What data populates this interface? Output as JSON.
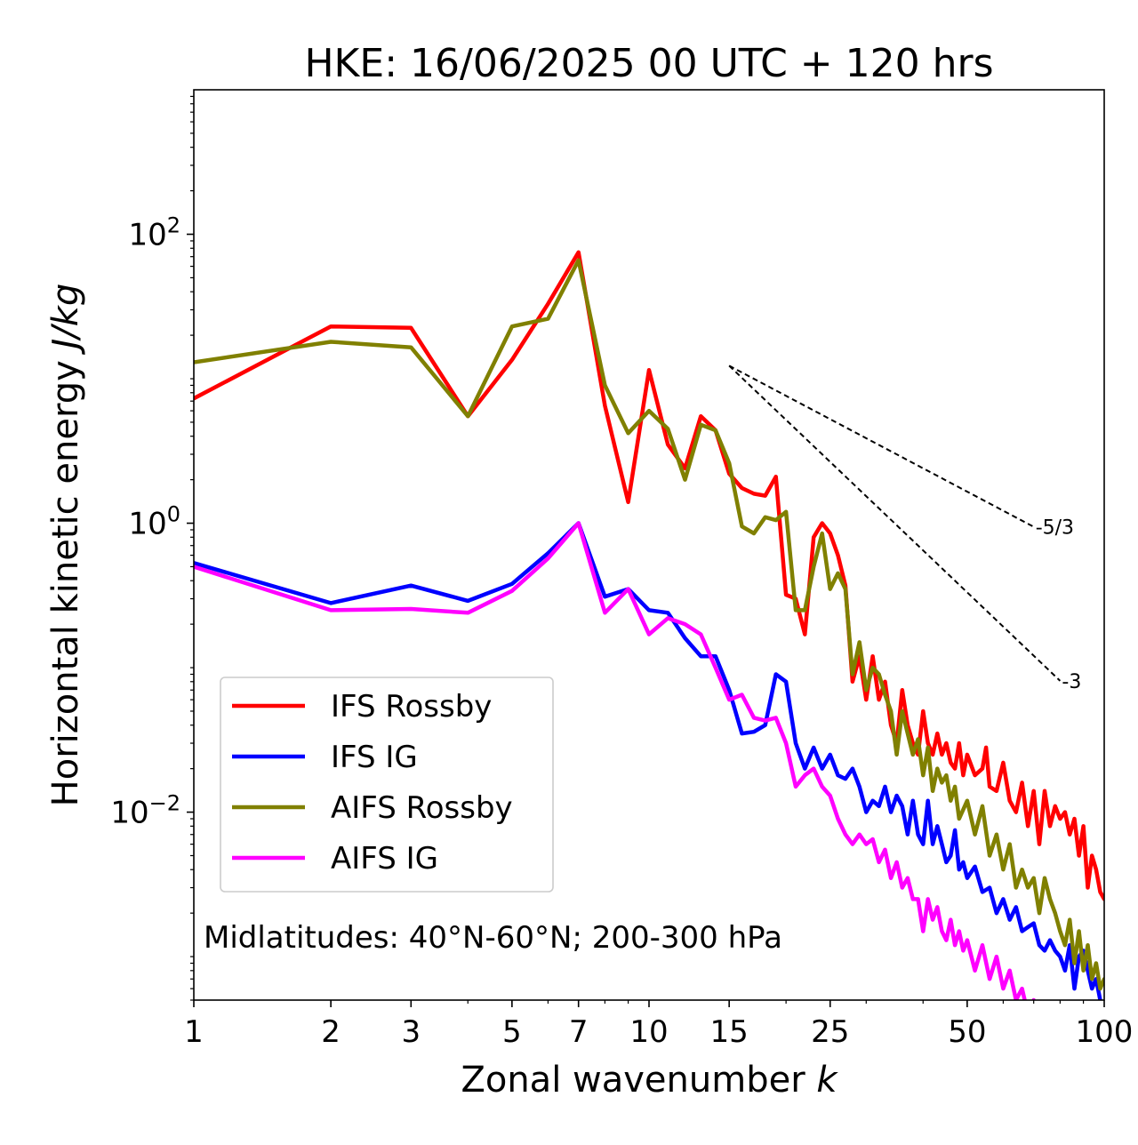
{
  "chart_data": {
    "type": "line",
    "title": "HKE: 16/06/2025 00 UTC + 120 hrs",
    "xlabel": "Zonal wavenumber",
    "xlabel_var": "k",
    "ylabel": "Horizontal kinetic energy",
    "ylabel_unit": "J/kg",
    "xscale": "log",
    "yscale": "log",
    "xlim": [
      1,
      100
    ],
    "ylim": [
      0.0005,
      1000
    ],
    "x_ticks": [
      {
        "value": 1,
        "label": "1"
      },
      {
        "value": 2,
        "label": "2"
      },
      {
        "value": 3,
        "label": "3"
      },
      {
        "value": 5,
        "label": "5"
      },
      {
        "value": 7,
        "label": "7"
      },
      {
        "value": 10,
        "label": "10"
      },
      {
        "value": 15,
        "label": "15"
      },
      {
        "value": 25,
        "label": "25"
      },
      {
        "value": 50,
        "label": "50"
      },
      {
        "value": 100,
        "label": "100"
      }
    ],
    "y_ticks": [
      {
        "value": 100,
        "base": "10",
        "exp": "2"
      },
      {
        "value": 1,
        "base": "10",
        "exp": "0"
      },
      {
        "value": 0.01,
        "base": "10",
        "exp": "−2"
      }
    ],
    "legend_position": "lower-left",
    "annotation": "Midlatitudes: 40°N-60°N; 200-300 hPa",
    "reference_lines": [
      {
        "label": "-5/3",
        "slope": -1.6667,
        "x": [
          15,
          70
        ],
        "y0": 12.3
      },
      {
        "label": "-3",
        "slope": -3,
        "x": [
          15,
          80
        ],
        "y0": 12.3
      }
    ],
    "series": [
      {
        "name": "IFS Rossby",
        "color": "#ff0000",
        "points": [
          [
            1,
            7.3
          ],
          [
            2,
            23
          ],
          [
            3,
            22.5
          ],
          [
            4,
            5.5
          ],
          [
            5,
            13.5
          ],
          [
            6,
            33
          ],
          [
            7,
            75
          ],
          [
            8,
            6.5
          ],
          [
            9,
            1.4
          ],
          [
            10,
            11.5
          ],
          [
            11,
            3.5
          ],
          [
            12,
            2.4
          ],
          [
            13,
            5.5
          ],
          [
            14,
            4.4
          ],
          [
            15,
            2.2
          ],
          [
            16,
            1.75
          ],
          [
            17,
            1.6
          ],
          [
            18,
            1.55
          ],
          [
            19,
            2.1
          ],
          [
            20,
            0.32
          ],
          [
            21,
            0.3
          ],
          [
            22,
            0.17
          ],
          [
            23,
            0.8
          ],
          [
            24,
            1.0
          ],
          [
            25,
            0.85
          ],
          [
            26,
            0.6
          ],
          [
            27,
            0.37
          ],
          [
            28,
            0.08
          ],
          [
            29,
            0.12
          ],
          [
            30,
            0.06
          ],
          [
            31,
            0.12
          ],
          [
            32,
            0.06
          ],
          [
            33,
            0.08
          ],
          [
            34,
            0.04
          ],
          [
            35,
            0.03
          ],
          [
            36,
            0.07
          ],
          [
            37,
            0.04
          ],
          [
            38,
            0.03
          ],
          [
            39,
            0.025
          ],
          [
            40,
            0.05
          ],
          [
            41,
            0.03
          ],
          [
            42,
            0.025
          ],
          [
            43,
            0.035
          ],
          [
            44,
            0.025
          ],
          [
            45,
            0.03
          ],
          [
            46,
            0.022
          ],
          [
            47,
            0.02
          ],
          [
            48,
            0.03
          ],
          [
            49,
            0.018
          ],
          [
            50,
            0.025
          ],
          [
            52,
            0.018
          ],
          [
            54,
            0.02
          ],
          [
            55,
            0.028
          ],
          [
            56,
            0.015
          ],
          [
            58,
            0.014
          ],
          [
            60,
            0.022
          ],
          [
            62,
            0.012
          ],
          [
            64,
            0.01
          ],
          [
            66,
            0.016
          ],
          [
            68,
            0.008
          ],
          [
            70,
            0.014
          ],
          [
            72,
            0.006
          ],
          [
            74,
            0.014
          ],
          [
            76,
            0.008
          ],
          [
            78,
            0.011
          ],
          [
            80,
            0.009
          ],
          [
            82,
            0.01
          ],
          [
            84,
            0.007
          ],
          [
            86,
            0.009
          ],
          [
            88,
            0.005
          ],
          [
            90,
            0.008
          ],
          [
            92,
            0.003
          ],
          [
            94,
            0.005
          ],
          [
            96,
            0.004
          ],
          [
            98,
            0.0028
          ],
          [
            100,
            0.0025
          ]
        ]
      },
      {
        "name": "IFS IG",
        "color": "#0000ff",
        "points": [
          [
            1,
            0.53
          ],
          [
            2,
            0.28
          ],
          [
            3,
            0.37
          ],
          [
            4,
            0.29
          ],
          [
            5,
            0.38
          ],
          [
            6,
            0.62
          ],
          [
            7,
            1.0
          ],
          [
            8,
            0.31
          ],
          [
            9,
            0.35
          ],
          [
            10,
            0.25
          ],
          [
            11,
            0.24
          ],
          [
            12,
            0.16
          ],
          [
            13,
            0.12
          ],
          [
            14,
            0.12
          ],
          [
            15,
            0.07
          ],
          [
            16,
            0.035
          ],
          [
            17,
            0.036
          ],
          [
            18,
            0.04
          ],
          [
            19,
            0.09
          ],
          [
            20,
            0.08
          ],
          [
            21,
            0.03
          ],
          [
            22,
            0.02
          ],
          [
            23,
            0.028
          ],
          [
            24,
            0.02
          ],
          [
            25,
            0.025
          ],
          [
            26,
            0.018
          ],
          [
            27,
            0.017
          ],
          [
            28,
            0.02
          ],
          [
            29,
            0.015
          ],
          [
            30,
            0.01
          ],
          [
            31,
            0.012
          ],
          [
            32,
            0.011
          ],
          [
            33,
            0.015
          ],
          [
            34,
            0.01
          ],
          [
            35,
            0.013
          ],
          [
            36,
            0.011
          ],
          [
            37,
            0.007
          ],
          [
            38,
            0.012
          ],
          [
            39,
            0.007
          ],
          [
            40,
            0.006
          ],
          [
            41,
            0.012
          ],
          [
            42,
            0.006
          ],
          [
            43,
            0.008
          ],
          [
            44,
            0.006
          ],
          [
            45,
            0.0045
          ],
          [
            46,
            0.005
          ],
          [
            47,
            0.0075
          ],
          [
            48,
            0.004
          ],
          [
            49,
            0.0045
          ],
          [
            50,
            0.0035
          ],
          [
            52,
            0.0042
          ],
          [
            54,
            0.0028
          ],
          [
            56,
            0.003
          ],
          [
            58,
            0.002
          ],
          [
            60,
            0.0025
          ],
          [
            62,
            0.0018
          ],
          [
            64,
            0.0022
          ],
          [
            66,
            0.0015
          ],
          [
            68,
            0.0016
          ],
          [
            70,
            0.0017
          ],
          [
            72,
            0.0012
          ],
          [
            74,
            0.0011
          ],
          [
            76,
            0.0013
          ],
          [
            78,
            0.0011
          ],
          [
            80,
            0.001
          ],
          [
            82,
            0.0008
          ],
          [
            84,
            0.0012
          ],
          [
            86,
            0.0006
          ],
          [
            88,
            0.001
          ],
          [
            90,
            0.0011
          ],
          [
            92,
            0.0008
          ],
          [
            94,
            0.0006
          ],
          [
            96,
            0.0007
          ],
          [
            98,
            0.0005
          ],
          [
            100,
            0.0004
          ]
        ]
      },
      {
        "name": "AIFS Rossby",
        "color": "#808000",
        "points": [
          [
            1,
            13
          ],
          [
            2,
            18
          ],
          [
            3,
            16.5
          ],
          [
            4,
            5.5
          ],
          [
            5,
            23
          ],
          [
            6,
            26
          ],
          [
            7,
            66
          ],
          [
            8,
            9
          ],
          [
            9,
            4.2
          ],
          [
            10,
            6
          ],
          [
            11,
            4.5
          ],
          [
            12,
            2.0
          ],
          [
            13,
            4.8
          ],
          [
            14,
            4.4
          ],
          [
            15,
            2.6
          ],
          [
            16,
            0.95
          ],
          [
            17,
            0.85
          ],
          [
            18,
            1.1
          ],
          [
            19,
            1.05
          ],
          [
            20,
            1.2
          ],
          [
            21,
            0.25
          ],
          [
            22,
            0.25
          ],
          [
            23,
            0.5
          ],
          [
            24,
            0.85
          ],
          [
            25,
            0.35
          ],
          [
            26,
            0.45
          ],
          [
            27,
            0.35
          ],
          [
            28,
            0.09
          ],
          [
            29,
            0.15
          ],
          [
            30,
            0.07
          ],
          [
            31,
            0.1
          ],
          [
            32,
            0.09
          ],
          [
            33,
            0.065
          ],
          [
            34,
            0.05
          ],
          [
            35,
            0.025
          ],
          [
            36,
            0.05
          ],
          [
            37,
            0.035
          ],
          [
            38,
            0.025
          ],
          [
            39,
            0.032
          ],
          [
            40,
            0.018
          ],
          [
            41,
            0.028
          ],
          [
            42,
            0.014
          ],
          [
            43,
            0.02
          ],
          [
            44,
            0.016
          ],
          [
            45,
            0.018
          ],
          [
            46,
            0.012
          ],
          [
            47,
            0.015
          ],
          [
            48,
            0.009
          ],
          [
            50,
            0.012
          ],
          [
            52,
            0.007
          ],
          [
            54,
            0.011
          ],
          [
            56,
            0.005
          ],
          [
            58,
            0.007
          ],
          [
            60,
            0.004
          ],
          [
            62,
            0.006
          ],
          [
            64,
            0.003
          ],
          [
            66,
            0.004
          ],
          [
            68,
            0.003
          ],
          [
            70,
            0.0035
          ],
          [
            72,
            0.002
          ],
          [
            74,
            0.0035
          ],
          [
            76,
            0.0025
          ],
          [
            78,
            0.002
          ],
          [
            80,
            0.0015
          ],
          [
            82,
            0.0012
          ],
          [
            84,
            0.0018
          ],
          [
            86,
            0.0009
          ],
          [
            88,
            0.0015
          ],
          [
            90,
            0.0008
          ],
          [
            92,
            0.0012
          ],
          [
            94,
            0.0007
          ],
          [
            96,
            0.0009
          ],
          [
            98,
            0.0006
          ],
          [
            100,
            0.0007
          ]
        ]
      },
      {
        "name": "AIFS IG",
        "color": "#ff00ff",
        "points": [
          [
            1,
            0.5
          ],
          [
            2,
            0.25
          ],
          [
            3,
            0.255
          ],
          [
            4,
            0.24
          ],
          [
            5,
            0.34
          ],
          [
            6,
            0.57
          ],
          [
            7,
            1.0
          ],
          [
            8,
            0.24
          ],
          [
            9,
            0.35
          ],
          [
            10,
            0.17
          ],
          [
            11,
            0.22
          ],
          [
            12,
            0.2
          ],
          [
            13,
            0.17
          ],
          [
            14,
            0.1
          ],
          [
            15,
            0.06
          ],
          [
            16,
            0.065
          ],
          [
            17,
            0.045
          ],
          [
            18,
            0.043
          ],
          [
            19,
            0.045
          ],
          [
            20,
            0.03
          ],
          [
            21,
            0.015
          ],
          [
            22,
            0.018
          ],
          [
            23,
            0.02
          ],
          [
            24,
            0.015
          ],
          [
            25,
            0.013
          ],
          [
            26,
            0.009
          ],
          [
            27,
            0.007
          ],
          [
            28,
            0.006
          ],
          [
            29,
            0.007
          ],
          [
            30,
            0.006
          ],
          [
            31,
            0.0065
          ],
          [
            32,
            0.0045
          ],
          [
            33,
            0.0055
          ],
          [
            34,
            0.0035
          ],
          [
            35,
            0.0045
          ],
          [
            36,
            0.003
          ],
          [
            37,
            0.0035
          ],
          [
            38,
            0.0025
          ],
          [
            39,
            0.0025
          ],
          [
            40,
            0.0015
          ],
          [
            41,
            0.0025
          ],
          [
            42,
            0.0018
          ],
          [
            43,
            0.0022
          ],
          [
            44,
            0.0015
          ],
          [
            45,
            0.0013
          ],
          [
            46,
            0.0018
          ],
          [
            47,
            0.0012
          ],
          [
            48,
            0.0015
          ],
          [
            49,
            0.0011
          ],
          [
            50,
            0.0013
          ],
          [
            52,
            0.0008
          ],
          [
            54,
            0.0012
          ],
          [
            56,
            0.0007
          ],
          [
            58,
            0.001
          ],
          [
            60,
            0.0006
          ],
          [
            62,
            0.0008
          ],
          [
            64,
            0.0005
          ],
          [
            66,
            0.0006
          ],
          [
            68,
            0.0004
          ],
          [
            70,
            0.0005
          ],
          [
            72,
            0.00035
          ],
          [
            74,
            0.0004
          ],
          [
            76,
            0.0003
          ]
        ]
      }
    ]
  }
}
